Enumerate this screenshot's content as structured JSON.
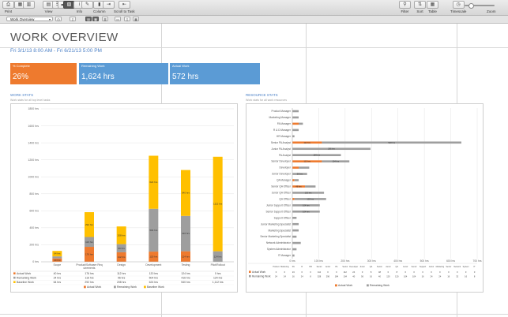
{
  "toolbar": {
    "left": [
      {
        "label": "Print",
        "icon": "printer-icon",
        "glyph": "⎙"
      },
      {
        "label": "",
        "icon": "grid-icon",
        "glyph": "▦"
      },
      {
        "label": "",
        "icon": "chart-icon",
        "glyph": "▥"
      },
      {
        "label": "View",
        "icon": "view-icon",
        "glyph": "▤"
      },
      {
        "label": "",
        "icon": "list-icon",
        "glyph": "☰"
      },
      {
        "label": "",
        "icon": "gantt-icon",
        "glyph": "▬"
      },
      {
        "label": "",
        "icon": "report-icon",
        "glyph": "▧",
        "active": true
      },
      {
        "label": "Info",
        "icon": "info-icon",
        "glyph": "i"
      },
      {
        "label": "",
        "icon": "note-icon",
        "glyph": "✎"
      },
      {
        "label": "Column",
        "icon": "column-icon",
        "glyph": "▮"
      },
      {
        "label": "",
        "icon": "indent-icon",
        "glyph": "⇥"
      },
      {
        "label": "Scroll to Task",
        "icon": "scroll-to-task-icon",
        "glyph": "⇤"
      }
    ],
    "right": [
      {
        "label": "Filter",
        "icon": "filter-icon",
        "glyph": "⚲"
      },
      {
        "label": "Sort",
        "icon": "sort-icon",
        "glyph": "⇅"
      },
      {
        "label": "Table",
        "icon": "table-icon",
        "glyph": "▦"
      },
      {
        "label": "Timescale",
        "icon": "timescale-icon",
        "glyph": "◷"
      },
      {
        "label": "Zoom",
        "icon": "zoom-icon",
        "glyph": ""
      }
    ]
  },
  "viewbar": {
    "selected_view": "Work Overview"
  },
  "report": {
    "title": "WORK OVERVIEW",
    "dates": "Fri 3/1/13 8:00 AM - Fri 6/21/13 5:00 PM",
    "kpis": [
      {
        "label": "% Complete",
        "value": "26%",
        "color": "#ee7a2e"
      },
      {
        "label": "Remaining Work",
        "value": "1,624 hrs",
        "color": "#5b9bd5"
      },
      {
        "label": "Actual Work",
        "value": "572 hrs",
        "color": "#5b9bd5"
      }
    ]
  },
  "work_stats": {
    "title": "WORK STATS",
    "subtitle": "Work stats for all top level tasks",
    "legend": [
      "Actual Work",
      "Remaining Work",
      "Baseline Work"
    ],
    "table_rows": [
      {
        "name": "Actual Work",
        "values": [
          "40 hrs",
          "176 hrs",
          "112 hrs",
          "120 hrs",
          "124 hrs",
          "0 hrs"
        ]
      },
      {
        "name": "Remaining Work",
        "values": [
          "24 hrs",
          "116 hrs",
          "96 hrs",
          "504 hrs",
          "416 hrs",
          "124 hrs"
        ]
      },
      {
        "name": "Baseline Work",
        "values": [
          "64 hrs",
          "292 hrs",
          "208 hrs",
          "624 hrs",
          "540 hrs",
          "1,112 hrs"
        ]
      }
    ]
  },
  "resource_stats": {
    "title": "RESOURCE STATS",
    "subtitle": "Work stats for all work resources",
    "legend": [
      "Actual Work",
      "Remaining Work"
    ]
  },
  "chart_data": [
    {
      "type": "bar",
      "title": "WORK STATS",
      "categories": [
        "Scope",
        "Product/Software Requirements",
        "Design",
        "Development",
        "Testing",
        "Pilot/Rollout"
      ],
      "series": [
        {
          "name": "Actual Work",
          "color": "#ee7a2e",
          "values": [
            40,
            176,
            112,
            120,
            124,
            0
          ]
        },
        {
          "name": "Remaining Work",
          "color": "#9e9e9e",
          "values": [
            24,
            116,
            96,
            504,
            416,
            124
          ]
        },
        {
          "name": "Baseline Work",
          "color": "#ffc000",
          "values": [
            64,
            292,
            208,
            624,
            540,
            1112
          ]
        }
      ],
      "yticks": [
        "0 hrs",
        "200 hrs",
        "400 hrs",
        "600 hrs",
        "800 hrs",
        "1000 hrs",
        "1200 hrs",
        "1400 hrs",
        "1600 hrs",
        "1800 hrs"
      ],
      "ylim": [
        0,
        1800
      ],
      "legend": "bottom",
      "grid": true
    },
    {
      "type": "bar",
      "orientation": "horizontal",
      "title": "RESOURCE STATS",
      "categories": [
        "Product Manager",
        "Marketing Manager",
        "PA Manager",
        "R & D Manager",
        "HR Manager",
        "Senior PA Analyst",
        "Junior PA Analyst",
        "PA Analyst",
        "Senior Developer",
        "Developer",
        "Junior Developer",
        "QA Manager",
        "Senior QA Officer",
        "Junior QA Officer",
        "QA Officer",
        "Junior Support Officer",
        "Senior Support Officer",
        "Support Officer",
        "Junior Marketing Specialist",
        "Marketing Specialist",
        "Senior Marketing Specialist",
        "Network Administrator",
        "System Administrator",
        "IT Manager"
      ],
      "series": [
        {
          "name": "Actual Work",
          "color": "#ee7a2e",
          "values": [
            0,
            0,
            24,
            0,
            0,
            112,
            0,
            0,
            112,
            24,
            0,
            8,
            48,
            0,
            8,
            0,
            0,
            0,
            0,
            0,
            0,
            0,
            0,
            0
          ]
        },
        {
          "name": "Remaining Work",
          "color": "#9e9e9e",
          "values": [
            24,
            24,
            16,
            24,
            8,
            528,
            296,
            184,
            104,
            40,
            56,
            16,
            40,
            120,
            120,
            104,
            104,
            16,
            24,
            24,
            16,
            32,
            16,
            8
          ]
        }
      ],
      "xticks": [
        "0 hrs",
        "100 hrs",
        "200 hrs",
        "300 hrs",
        "400 hrs",
        "500 hrs",
        "600 hrs",
        "700 hrs"
      ],
      "xlim": [
        0,
        700
      ],
      "legend": "bottom",
      "grid": true
    }
  ]
}
